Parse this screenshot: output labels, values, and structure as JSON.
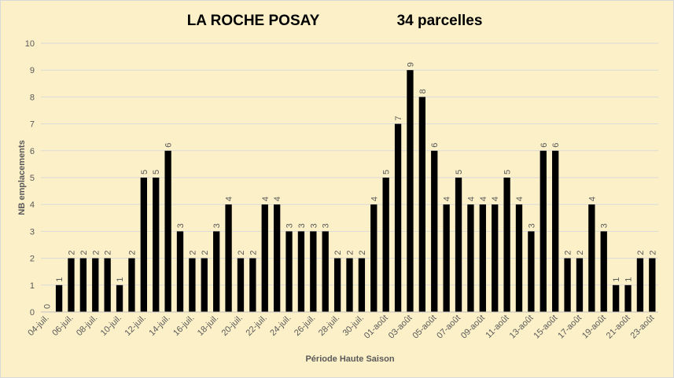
{
  "chart_data": {
    "type": "bar",
    "title": "LA ROCHE POSAY",
    "subtitle": "34 parcelles",
    "x_label": "Période Haute Saison",
    "y_label": "NB emplacements",
    "categories": [
      "04-juil.",
      null,
      "06-juil.",
      null,
      "08-juil.",
      null,
      "10-juil.",
      null,
      "12-juil.",
      null,
      "14-juil.",
      null,
      "16-juil.",
      null,
      "18-juil.",
      null,
      "20-juil.",
      null,
      "22-juil.",
      null,
      "24-juil.",
      null,
      "26-juil.",
      null,
      "28-juil.",
      null,
      "30-juil.",
      null,
      "01-août",
      null,
      "03-août",
      null,
      "05-août",
      null,
      "07-août",
      null,
      "09-août",
      null,
      "11-août",
      null,
      "13-août",
      null,
      "15-août",
      null,
      "17-août",
      null,
      "19-août",
      null,
      "21-août",
      null,
      "23-août"
    ],
    "values": [
      0,
      1,
      2,
      2,
      2,
      2,
      1,
      2,
      5,
      5,
      6,
      3,
      2,
      2,
      3,
      4,
      2,
      2,
      4,
      4,
      3,
      3,
      3,
      3,
      2,
      2,
      2,
      4,
      5,
      7,
      9,
      8,
      6,
      4,
      5,
      4,
      4,
      4,
      5,
      4,
      3,
      6,
      6,
      2,
      2,
      4,
      3,
      1,
      1,
      2,
      2
    ],
    "color": "#000000",
    "ylim": [
      0,
      10
    ],
    "yticks": [
      0,
      1,
      2,
      3,
      4,
      5,
      6,
      7,
      8,
      9,
      10
    ],
    "grid": true
  }
}
